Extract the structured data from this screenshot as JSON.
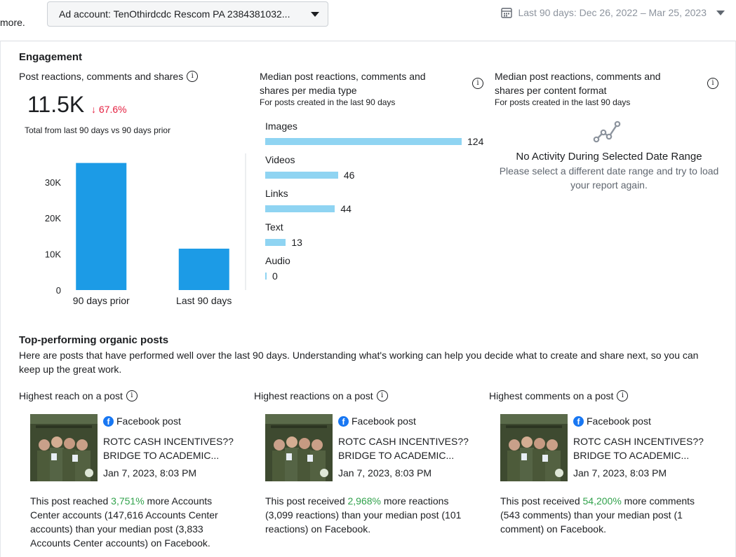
{
  "topbar": {
    "more_text": "more.",
    "ad_account_label": "Ad account: TenOthirdcdc Rescom PA 2384381032...",
    "date_range": "Last 90 days: Dec 26, 2022 – Mar 25, 2023"
  },
  "engagement": {
    "section_title": "Engagement",
    "reactions_card": {
      "title": "Post reactions, comments and shares",
      "total": "11.5K",
      "change": "67.6%",
      "note": "Total from last 90 days vs 90 days prior",
      "chart_data": {
        "type": "bar",
        "categories": [
          "90 days prior",
          "Last 90 days"
        ],
        "values": [
          35300,
          11500
        ],
        "yticks": [
          "0",
          "10K",
          "20K",
          "30K"
        ],
        "ytick_values": [
          0,
          10000,
          20000,
          30000
        ],
        "ylim": [
          0,
          36000
        ],
        "color": "#1c9be6"
      }
    },
    "media_type_card": {
      "title": "Median post reactions, comments and shares per media type",
      "subtitle": "For posts created in the last 90 days",
      "chart_data": {
        "type": "bar",
        "orientation": "horizontal",
        "categories": [
          "Images",
          "Videos",
          "Links",
          "Text",
          "Audio"
        ],
        "values": [
          124,
          46,
          44,
          13,
          0
        ],
        "max": 124,
        "color": "#8fd4f2"
      }
    },
    "content_format_card": {
      "title": "Median post reactions, comments and shares per content format",
      "subtitle": "For posts created in the last 90 days",
      "empty_title": "No Activity During Selected Date Range",
      "empty_desc": "Please select a different date range and try to load your report again."
    }
  },
  "top_posts": {
    "section_title": "Top-performing organic posts",
    "description": "Here are posts that have performed well over the last 90 days. Understanding what's working can help you decide what to create and share next, so you can keep up the great work.",
    "cards": [
      {
        "title": "Highest reach on a post",
        "source": "Facebook post",
        "caption": "ROTC CASH INCENTIVES?? BRIDGE TO ACADEMIC...",
        "date": "Jan 7, 2023, 8:03 PM",
        "summary_pre": "This post reached ",
        "summary_highlight": "3,751%",
        "summary_post": " more Accounts Center accounts (147,616 Accounts Center accounts) than your median post (3,833 Accounts Center accounts) on Facebook."
      },
      {
        "title": "Highest reactions on a post",
        "source": "Facebook post",
        "caption": "ROTC CASH INCENTIVES?? BRIDGE TO ACADEMIC...",
        "date": "Jan 7, 2023, 8:03 PM",
        "summary_pre": "This post received ",
        "summary_highlight": "2,968%",
        "summary_post": " more reactions (3,099 reactions) than your median post (101 reactions) on Facebook."
      },
      {
        "title": "Highest comments on a post",
        "source": "Facebook post",
        "caption": "ROTC CASH INCENTIVES?? BRIDGE TO ACADEMIC...",
        "date": "Jan 7, 2023, 8:03 PM",
        "summary_pre": "This post received ",
        "summary_highlight": "54,200%",
        "summary_post": " more comments (543 comments) than your median post (1 comment) on Facebook."
      }
    ]
  }
}
